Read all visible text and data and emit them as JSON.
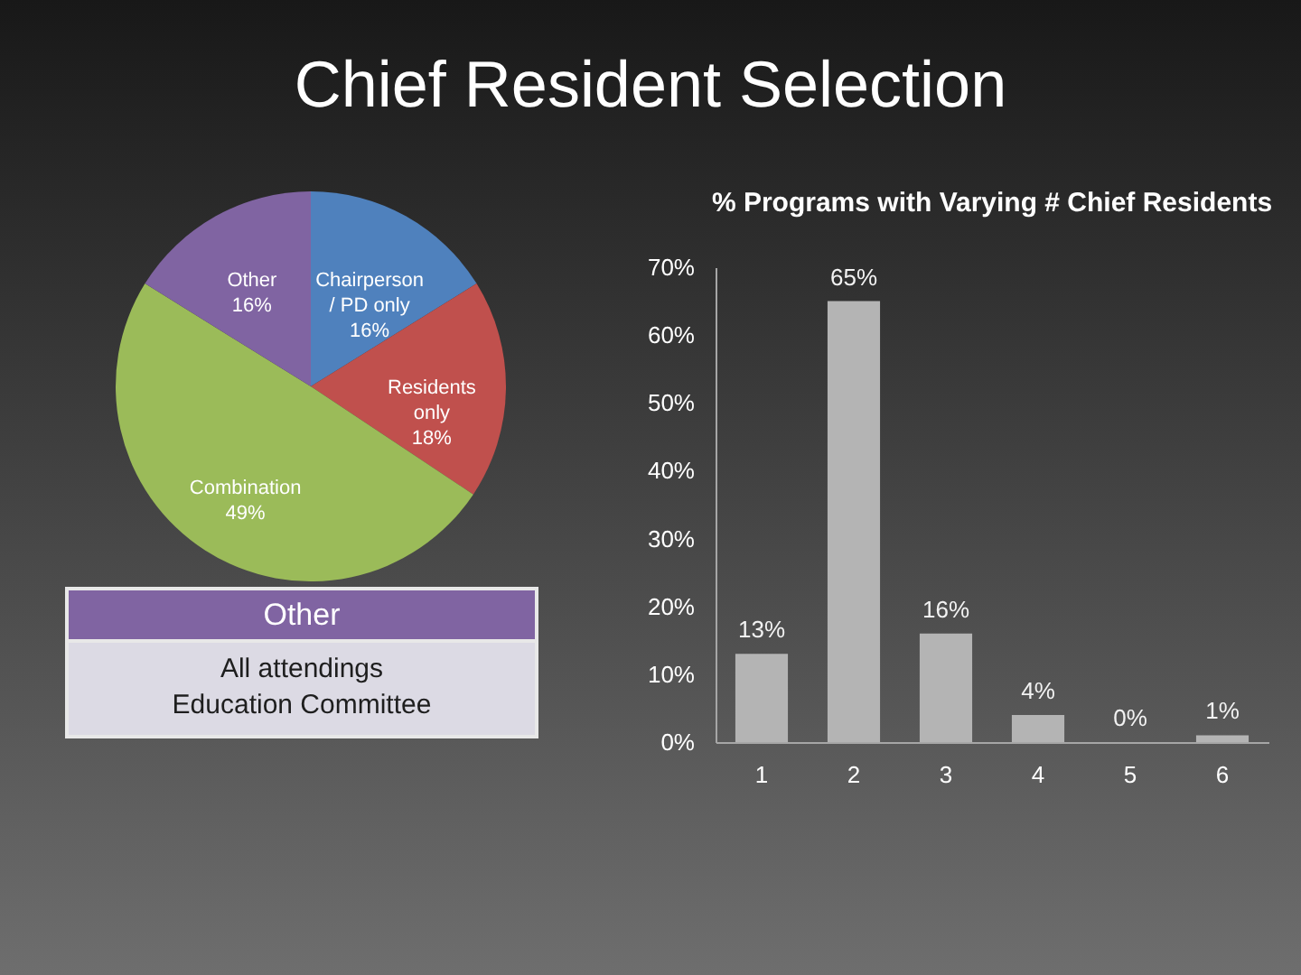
{
  "chart_data": [
    {
      "type": "pie",
      "title": "Chief Resident Selection",
      "categories": [
        "Chairperson / PD only",
        "Residents only",
        "Combination",
        "Other"
      ],
      "values": [
        16,
        18,
        49,
        16
      ],
      "colors": [
        "#4f81bd",
        "#c0504d",
        "#9bbb59",
        "#8064a2"
      ],
      "value_labels": [
        "16%",
        "18%",
        "49%",
        "16%"
      ]
    },
    {
      "type": "bar",
      "title": "% Programs with Varying # Chief Residents",
      "categories": [
        "1",
        "2",
        "3",
        "4",
        "5",
        "6"
      ],
      "values": [
        13,
        65,
        16,
        4,
        0,
        1
      ],
      "color": "#b4b4b4",
      "value_labels": [
        "13%",
        "65%",
        "16%",
        "4%",
        "0%",
        "1%"
      ],
      "ylim": [
        0,
        70
      ],
      "yticks": [
        {
          "value": 0,
          "label": "0%"
        },
        {
          "value": 10,
          "label": "10%"
        },
        {
          "value": 20,
          "label": "20%"
        },
        {
          "value": 30,
          "label": "30%"
        },
        {
          "value": 40,
          "label": "40%"
        },
        {
          "value": 50,
          "label": "50%"
        },
        {
          "value": 60,
          "label": "60%"
        },
        {
          "value": 70,
          "label": "70%"
        }
      ]
    },
    {
      "type": "other",
      "title": "Other",
      "color": "#8064a2",
      "annotations": [
        "All attendings",
        "Education Committee"
      ]
    }
  ]
}
